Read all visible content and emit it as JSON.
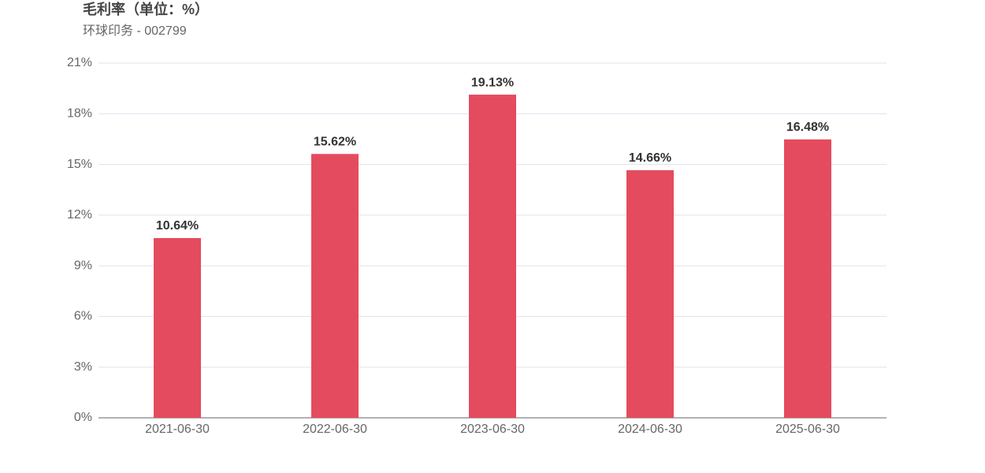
{
  "chart_data": {
    "type": "bar",
    "title": "毛利率（单位：%）",
    "subtitle": "环球印务 - 002799",
    "categories": [
      "2021-06-30",
      "2022-06-30",
      "2023-06-30",
      "2024-06-30",
      "2025-06-30"
    ],
    "values": [
      10.64,
      15.62,
      19.13,
      14.66,
      16.48
    ],
    "value_labels": [
      "10.64%",
      "15.62%",
      "19.13%",
      "14.66%",
      "16.48%"
    ],
    "color": "#e54b5e",
    "ylim": [
      0,
      21
    ],
    "yticks": [
      {
        "value": 0,
        "label": "0%"
      },
      {
        "value": 3,
        "label": "3%"
      },
      {
        "value": 6,
        "label": "6%"
      },
      {
        "value": 9,
        "label": "9%"
      },
      {
        "value": 12,
        "label": "12%"
      },
      {
        "value": 15,
        "label": "15%"
      },
      {
        "value": 18,
        "label": "18%"
      },
      {
        "value": 21,
        "label": "21%"
      }
    ],
    "grid": true
  }
}
